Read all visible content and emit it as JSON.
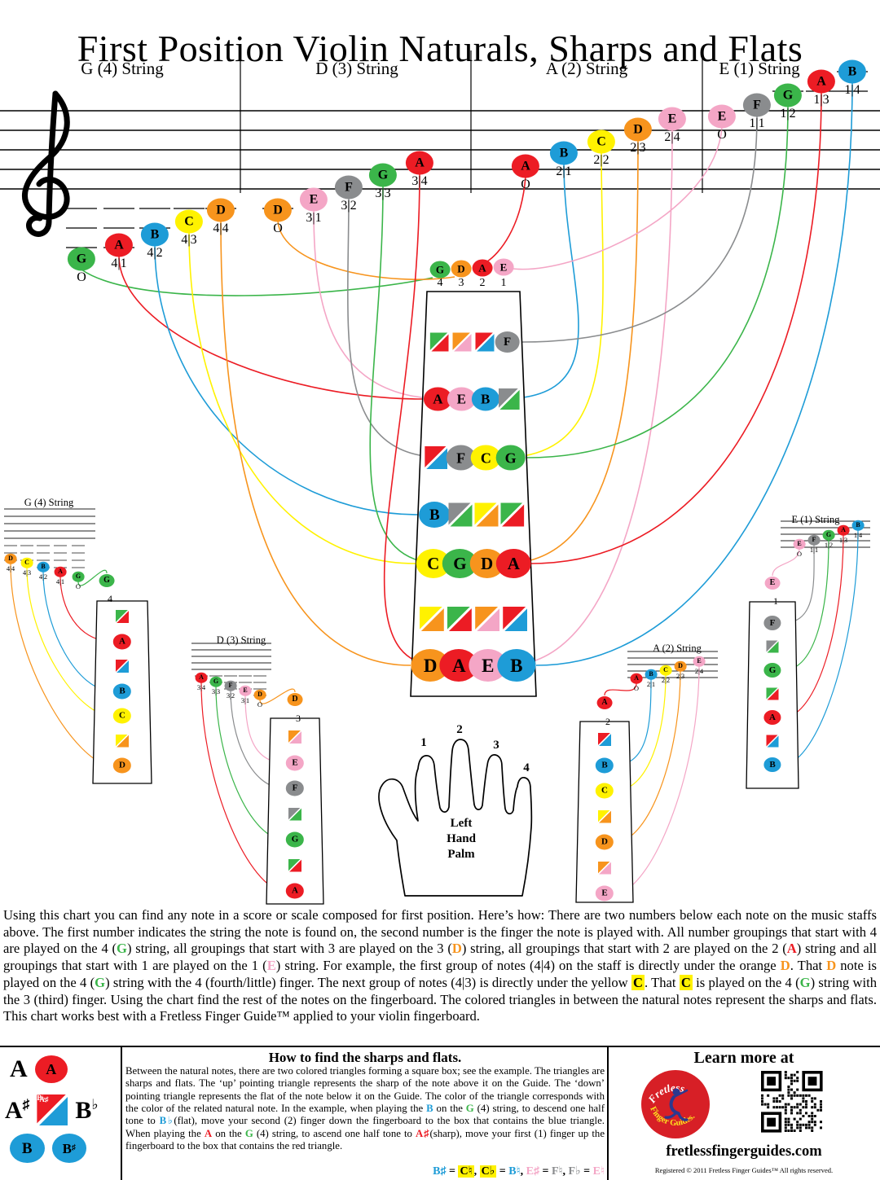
{
  "title": "First Position Violin Naturals, Sharps and Flats",
  "colors": {
    "G": "#3bb54a",
    "A": "#ec1c24",
    "B": "#1e9cd7",
    "C": "#fff200",
    "D": "#f7941d",
    "E": "#f4a6c6",
    "F": "#8a8c8e"
  },
  "icons": {
    "clef": "treble-clef",
    "hand": "left-hand-palm",
    "qr": "qr-code",
    "logo": "fretless-finger-guides-logo"
  },
  "staff": {
    "headers": [
      "G (4) String",
      "D (3) String",
      "A (2) String",
      "E (1) String"
    ],
    "notes": [
      {
        "note": "G",
        "finger": "O",
        "target": [
          -1,
          0
        ]
      },
      {
        "note": "A",
        "finger": "4|1",
        "target": [
          1,
          0
        ]
      },
      {
        "note": "B",
        "finger": "4|2",
        "target": [
          3,
          0
        ]
      },
      {
        "note": "C",
        "finger": "4|3",
        "target": [
          4,
          0
        ]
      },
      {
        "note": "D",
        "finger": "4|4",
        "target": [
          6,
          0
        ]
      },
      {
        "note": "D",
        "finger": "O",
        "target": [
          -1,
          1
        ]
      },
      {
        "note": "E",
        "finger": "3|1",
        "target": [
          1,
          1
        ]
      },
      {
        "note": "F",
        "finger": "3|2",
        "target": [
          2,
          1
        ]
      },
      {
        "note": "G",
        "finger": "3|3",
        "target": [
          4,
          1
        ]
      },
      {
        "note": "A",
        "finger": "3|4",
        "target": [
          6,
          1
        ]
      },
      {
        "note": "A",
        "finger": "O",
        "target": [
          -1,
          2
        ]
      },
      {
        "note": "B",
        "finger": "2|1",
        "target": [
          1,
          2
        ]
      },
      {
        "note": "C",
        "finger": "2|2",
        "target": [
          2,
          2
        ]
      },
      {
        "note": "D",
        "finger": "2|3",
        "target": [
          4,
          2
        ]
      },
      {
        "note": "E",
        "finger": "2|4",
        "target": [
          6,
          2
        ]
      },
      {
        "note": "E",
        "finger": "O",
        "target": [
          -1,
          3
        ]
      },
      {
        "note": "F",
        "finger": "1|1",
        "target": [
          0,
          3
        ]
      },
      {
        "note": "G",
        "finger": "1|2",
        "target": [
          2,
          3
        ]
      },
      {
        "note": "A",
        "finger": "1|3",
        "target": [
          4,
          3
        ]
      },
      {
        "note": "B",
        "finger": "1|4",
        "target": [
          6,
          3
        ]
      }
    ]
  },
  "nut": {
    "notes": [
      "G",
      "D",
      "A",
      "E"
    ],
    "string_numbers": [
      "4",
      "3",
      "2",
      "1"
    ]
  },
  "fingerboard": {
    "rows": [
      [
        {
          "split": [
            "G",
            "A"
          ]
        },
        {
          "split": [
            "D",
            "E"
          ]
        },
        {
          "split": [
            "A",
            "B"
          ]
        },
        {
          "note": "F"
        }
      ],
      [
        {
          "note": "A"
        },
        {
          "note": "E"
        },
        {
          "note": "B"
        },
        {
          "split": [
            "F",
            "G"
          ]
        }
      ],
      [
        {
          "split": [
            "A",
            "B"
          ]
        },
        {
          "note": "F"
        },
        {
          "note": "C"
        },
        {
          "note": "G"
        }
      ],
      [
        {
          "note": "B"
        },
        {
          "split": [
            "F",
            "G"
          ]
        },
        {
          "split": [
            "C",
            "D"
          ]
        },
        {
          "split": [
            "G",
            "A"
          ]
        }
      ],
      [
        {
          "note": "C"
        },
        {
          "note": "G"
        },
        {
          "note": "D"
        },
        {
          "note": "A"
        }
      ],
      [
        {
          "split": [
            "C",
            "D"
          ]
        },
        {
          "split": [
            "G",
            "A"
          ]
        },
        {
          "split": [
            "D",
            "E"
          ]
        },
        {
          "split": [
            "A",
            "B"
          ]
        }
      ],
      [
        {
          "note": "D"
        },
        {
          "note": "A"
        },
        {
          "note": "E"
        },
        {
          "note": "B"
        }
      ]
    ]
  },
  "hand": {
    "finger_labels": [
      "1",
      "2",
      "3",
      "4"
    ],
    "caption": [
      "Left",
      "Hand",
      "Palm"
    ]
  },
  "mini_diagrams": [
    {
      "title": "G (4) String",
      "string_number": "4",
      "nut_note": "G",
      "staff_notes": [
        {
          "note": "D",
          "finger": "4|4",
          "cell": 6
        },
        {
          "note": "C",
          "finger": "4|3",
          "cell": 4
        },
        {
          "note": "B",
          "finger": "4|2",
          "cell": 3
        },
        {
          "note": "A",
          "finger": "4|1",
          "cell": 1
        },
        {
          "note": "G",
          "finger": "O",
          "cell": -1
        }
      ],
      "cells": [
        {
          "split": [
            "G",
            "A"
          ]
        },
        {
          "note": "A"
        },
        {
          "split": [
            "A",
            "B"
          ]
        },
        {
          "note": "B"
        },
        {
          "note": "C"
        },
        {
          "split": [
            "C",
            "D"
          ]
        },
        {
          "note": "D"
        }
      ]
    },
    {
      "title": "D (3) String",
      "string_number": "3",
      "nut_note": "D",
      "staff_notes": [
        {
          "note": "A",
          "finger": "3|4",
          "cell": 6
        },
        {
          "note": "G",
          "finger": "3|3",
          "cell": 4
        },
        {
          "note": "F",
          "finger": "3|2",
          "cell": 2
        },
        {
          "note": "E",
          "finger": "3|1",
          "cell": 1
        },
        {
          "note": "D",
          "finger": "O",
          "cell": -1
        }
      ],
      "cells": [
        {
          "split": [
            "D",
            "E"
          ]
        },
        {
          "note": "E"
        },
        {
          "note": "F"
        },
        {
          "split": [
            "F",
            "G"
          ]
        },
        {
          "note": "G"
        },
        {
          "split": [
            "G",
            "A"
          ]
        },
        {
          "note": "A"
        }
      ]
    },
    {
      "title": "A (2) String",
      "string_number": "2",
      "nut_note": "A",
      "staff_notes": [
        {
          "note": "A",
          "finger": "O",
          "cell": -1
        },
        {
          "note": "B",
          "finger": "2|1",
          "cell": 1
        },
        {
          "note": "C",
          "finger": "2|2",
          "cell": 2
        },
        {
          "note": "D",
          "finger": "2|3",
          "cell": 4
        },
        {
          "note": "E",
          "finger": "2|4",
          "cell": 6
        }
      ],
      "cells": [
        {
          "split": [
            "A",
            "B"
          ]
        },
        {
          "note": "B"
        },
        {
          "note": "C"
        },
        {
          "split": [
            "C",
            "D"
          ]
        },
        {
          "note": "D"
        },
        {
          "split": [
            "D",
            "E"
          ]
        },
        {
          "note": "E"
        }
      ]
    },
    {
      "title": "E (1) String",
      "string_number": "1",
      "nut_note": "E",
      "staff_notes": [
        {
          "note": "E",
          "finger": "O",
          "cell": -1
        },
        {
          "note": "F",
          "finger": "1|1",
          "cell": 0
        },
        {
          "note": "G",
          "finger": "1|2",
          "cell": 2
        },
        {
          "note": "A",
          "finger": "1|3",
          "cell": 4
        },
        {
          "note": "B",
          "finger": "1|4",
          "cell": 6
        }
      ],
      "cells": [
        {
          "note": "F"
        },
        {
          "split": [
            "F",
            "G"
          ]
        },
        {
          "note": "G"
        },
        {
          "split": [
            "G",
            "A"
          ]
        },
        {
          "note": "A"
        },
        {
          "split": [
            "A",
            "B"
          ]
        },
        {
          "note": "B"
        }
      ]
    }
  ],
  "description": {
    "segments": [
      {
        "t": "Using this chart you can find any note in a score or scale composed for first position. Here’s how: There are two numbers below each note on the music staffs above. The first number indicates the string the note is found on, the second number is the finger the note is played with. All number groupings that start with 4 are played on the 4 ("
      },
      {
        "t": "G",
        "n": "G"
      },
      {
        "t": ") string, all groupings that start with 3 are played on the 3 ("
      },
      {
        "t": "D",
        "n": "D"
      },
      {
        "t": ") string, all groupings that start with 2 are played on the 2 ("
      },
      {
        "t": "A",
        "n": "A"
      },
      {
        "t": ") string and all groupings that start with 1 are played on the 1 ("
      },
      {
        "t": "E",
        "n": "E"
      },
      {
        "t": ") string. For example, the first group of notes (4|4) on the staff is directly under the orange "
      },
      {
        "t": "D",
        "n": "D"
      },
      {
        "t": ". That "
      },
      {
        "t": "D",
        "n": "D"
      },
      {
        "t": " note is played on the 4 ("
      },
      {
        "t": "G",
        "n": "G"
      },
      {
        "t": ") string with the 4 (fourth/little) finger. The next  group of notes (4|3) is directly under the yellow "
      },
      {
        "t": "C",
        "n": "C"
      },
      {
        "t": ". That "
      },
      {
        "t": "C",
        "n": "C"
      },
      {
        "t": " is played on the 4 ("
      },
      {
        "t": "G",
        "n": "G"
      },
      {
        "t": ") string with the 3 (third) finger. Using the chart find the rest of the notes on the fingerboard. The colored triangles in between the natural notes represent the sharps and flats. This chart works best with a Fretless Finger Guide™ applied to your violin fingerboard."
      }
    ]
  },
  "how_to": {
    "heading": "How to find the sharps and flats.",
    "segments": [
      {
        "t": "Between the natural notes, there are two colored triangles forming a square box; see the example. The triangles are sharps and flats. The ‘up’ pointing triangle represents the sharp of the note above it on the Guide. The ‘down’ pointing triangle represents the flat of the note below it on the Guide.  The color of the triangle corresponds with the color of the related natural note.  In the example, when playing the "
      },
      {
        "t": "B",
        "n": "B"
      },
      {
        "t": " on the "
      },
      {
        "t": "G",
        "n": "G"
      },
      {
        "t": " (4) string, to descend one half tone to "
      },
      {
        "t": "B♭",
        "n": "B"
      },
      {
        "t": "(flat), move your second (2) finger down the fingerboard to the box that contains the blue triangle. When playing the "
      },
      {
        "t": "A",
        "n": "A"
      },
      {
        "t": " on the "
      },
      {
        "t": "G",
        "n": "G"
      },
      {
        "t": " (4) string, to ascend one half tone to "
      },
      {
        "t": "A♯",
        "n": "A"
      },
      {
        "t": "(sharp), move your first (1) finger up the fingerboard to the box that contains the red triangle."
      }
    ],
    "enharmonics": [
      {
        "t": "B♯",
        "n": "B"
      },
      {
        "t": " = "
      },
      {
        "t": "C♮",
        "n": "C"
      },
      {
        "t": ",  "
      },
      {
        "t": "C♭",
        "n": "C"
      },
      {
        "t": " = "
      },
      {
        "t": "B♮",
        "n": "B"
      },
      {
        "t": ",  "
      },
      {
        "t": "E♯",
        "n": "E"
      },
      {
        "t": " = "
      },
      {
        "t": "F♮",
        "n": "F"
      },
      {
        "t": ",  "
      },
      {
        "t": "F♭",
        "n": "F"
      },
      {
        "t": " = "
      },
      {
        "t": "E♮",
        "n": "E"
      }
    ]
  },
  "legend": {
    "row1": {
      "letter": "A",
      "circle_note": "A"
    },
    "row2": {
      "left": {
        "base": "A",
        "acc": "♯"
      },
      "split": [
        "A",
        "B"
      ],
      "split_labels": [
        "A♯",
        "B♭"
      ],
      "right": {
        "base": "B",
        "acc": "♭"
      }
    },
    "row3": {
      "circle1": "B",
      "circle2": {
        "base": "B",
        "acc": "♯"
      }
    }
  },
  "learn_more": {
    "heading": "Learn more at",
    "logo": {
      "line1": "Fretless",
      "line2": "Finger Guides."
    },
    "website": "fretlessfingerguides.com",
    "copyright": "Registered © 2011 Fretless Finger Guides™ All rights reserved."
  }
}
